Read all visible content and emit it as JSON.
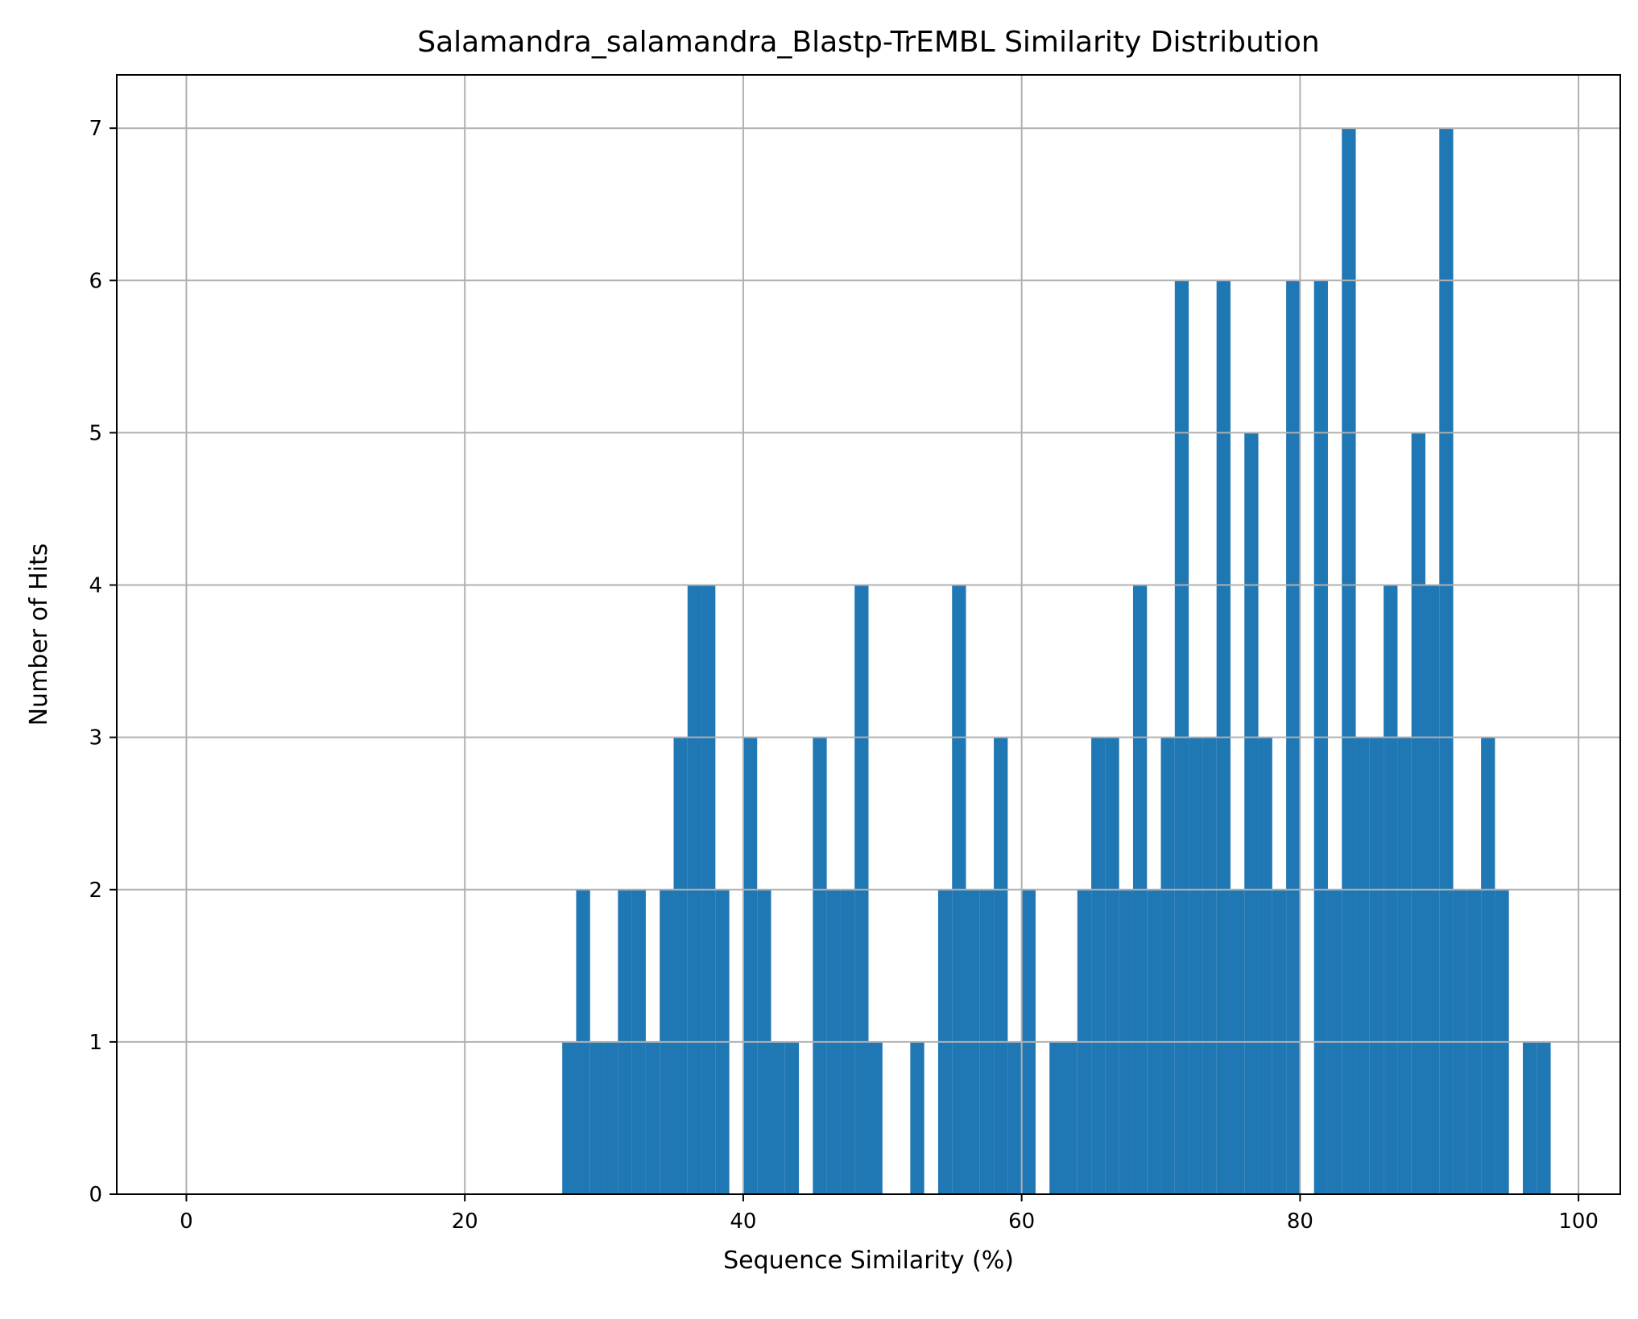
{
  "chart_data": {
    "type": "bar",
    "title": "Salamandra_salamandra_Blastp-TrEMBL Similarity Distribution",
    "xlabel": "Sequence Similarity (%)",
    "ylabel": "Number of Hits",
    "xlim": [
      -5,
      103
    ],
    "ylim": [
      0,
      7.35
    ],
    "x_ticks": [
      0,
      20,
      40,
      60,
      80,
      100
    ],
    "y_ticks": [
      0,
      1,
      2,
      3,
      4,
      5,
      6,
      7
    ],
    "grid": true,
    "bar_color": "#1f77b4",
    "bin_width": 1,
    "bins": [
      {
        "x": 27,
        "value": 1
      },
      {
        "x": 28,
        "value": 2
      },
      {
        "x": 29,
        "value": 1
      },
      {
        "x": 30,
        "value": 1
      },
      {
        "x": 31,
        "value": 2
      },
      {
        "x": 32,
        "value": 2
      },
      {
        "x": 33,
        "value": 1
      },
      {
        "x": 34,
        "value": 2
      },
      {
        "x": 35,
        "value": 3
      },
      {
        "x": 36,
        "value": 4
      },
      {
        "x": 37,
        "value": 4
      },
      {
        "x": 38,
        "value": 2
      },
      {
        "x": 40,
        "value": 3
      },
      {
        "x": 41,
        "value": 2
      },
      {
        "x": 42,
        "value": 1
      },
      {
        "x": 43,
        "value": 1
      },
      {
        "x": 45,
        "value": 3
      },
      {
        "x": 46,
        "value": 2
      },
      {
        "x": 47,
        "value": 2
      },
      {
        "x": 48,
        "value": 4
      },
      {
        "x": 49,
        "value": 1
      },
      {
        "x": 52,
        "value": 1
      },
      {
        "x": 54,
        "value": 2
      },
      {
        "x": 55,
        "value": 4
      },
      {
        "x": 56,
        "value": 2
      },
      {
        "x": 57,
        "value": 2
      },
      {
        "x": 58,
        "value": 3
      },
      {
        "x": 59,
        "value": 1
      },
      {
        "x": 60,
        "value": 2
      },
      {
        "x": 62,
        "value": 1
      },
      {
        "x": 63,
        "value": 1
      },
      {
        "x": 64,
        "value": 2
      },
      {
        "x": 65,
        "value": 3
      },
      {
        "x": 66,
        "value": 3
      },
      {
        "x": 67,
        "value": 2
      },
      {
        "x": 68,
        "value": 4
      },
      {
        "x": 69,
        "value": 2
      },
      {
        "x": 70,
        "value": 3
      },
      {
        "x": 71,
        "value": 6
      },
      {
        "x": 72,
        "value": 3
      },
      {
        "x": 73,
        "value": 3
      },
      {
        "x": 74,
        "value": 6
      },
      {
        "x": 75,
        "value": 2
      },
      {
        "x": 76,
        "value": 5
      },
      {
        "x": 77,
        "value": 3
      },
      {
        "x": 78,
        "value": 2
      },
      {
        "x": 79,
        "value": 6
      },
      {
        "x": 81,
        "value": 6
      },
      {
        "x": 82,
        "value": 2
      },
      {
        "x": 83,
        "value": 7
      },
      {
        "x": 84,
        "value": 3
      },
      {
        "x": 85,
        "value": 3
      },
      {
        "x": 86,
        "value": 4
      },
      {
        "x": 87,
        "value": 3
      },
      {
        "x": 88,
        "value": 5
      },
      {
        "x": 89,
        "value": 4
      },
      {
        "x": 90,
        "value": 7
      },
      {
        "x": 91,
        "value": 2
      },
      {
        "x": 92,
        "value": 2
      },
      {
        "x": 93,
        "value": 3
      },
      {
        "x": 94,
        "value": 2
      },
      {
        "x": 96,
        "value": 1
      },
      {
        "x": 97,
        "value": 1
      }
    ]
  }
}
